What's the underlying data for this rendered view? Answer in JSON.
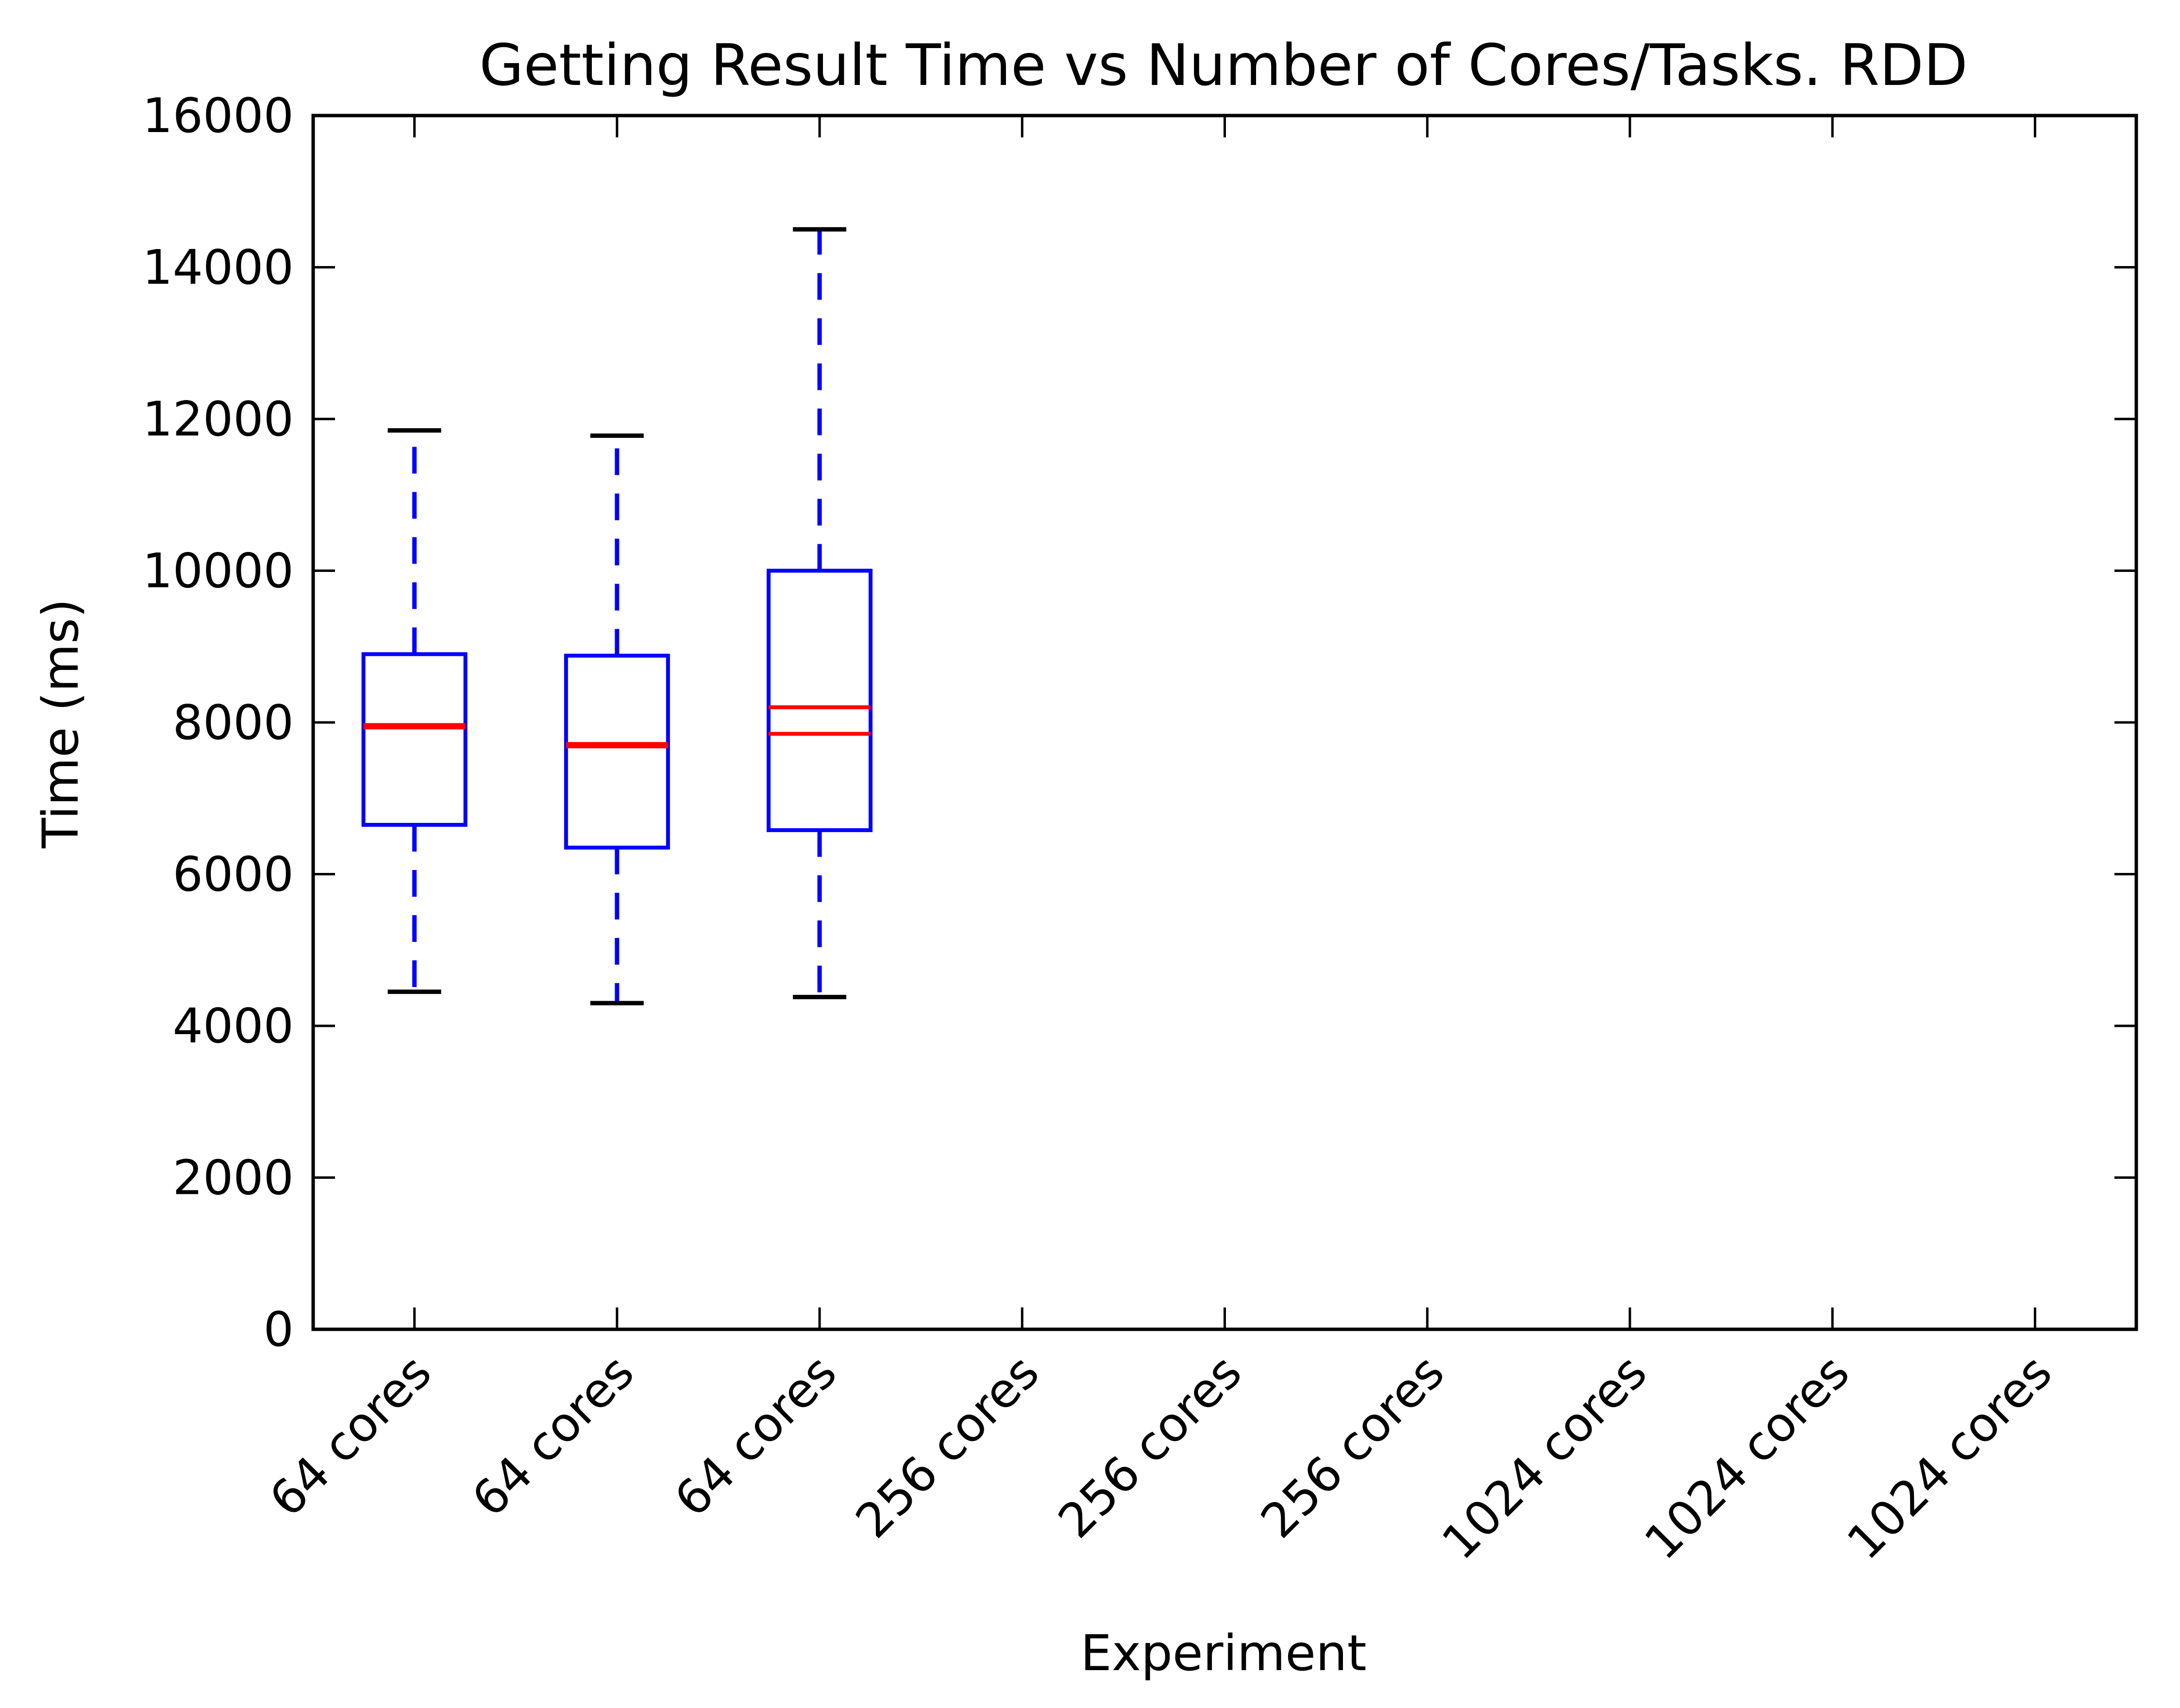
{
  "chart_data": {
    "type": "box",
    "title": "Getting Result Time vs Number of Cores/Tasks. RDD",
    "xlabel": "Experiment",
    "ylabel": "Time (ms)",
    "ylim": [
      0,
      16000
    ],
    "yticks": [
      0,
      2000,
      4000,
      6000,
      8000,
      10000,
      12000,
      14000,
      16000
    ],
    "categories": [
      "64 cores",
      "64 cores",
      "64 cores",
      "256 cores",
      "256 cores",
      "256 cores",
      "1024 cores",
      "1024 cores",
      "1024 cores"
    ],
    "boxes": [
      {
        "whisker_low": 4450,
        "q1": 6650,
        "median": 7950,
        "q3": 8900,
        "whisker_high": 11850,
        "medians": [
          7950
        ]
      },
      {
        "whisker_low": 4300,
        "q1": 6350,
        "median": 7700,
        "q3": 8880,
        "whisker_high": 11780,
        "medians": [
          7700
        ]
      },
      {
        "whisker_low": 4380,
        "q1": 6580,
        "median": 8200,
        "q3": 10000,
        "whisker_high": 14500,
        "medians": [
          8200,
          7850
        ]
      },
      null,
      null,
      null,
      null,
      null,
      null
    ],
    "box_color": "#0000ff",
    "median_color": "#ff0000",
    "whisker_cap_color": "#000000",
    "grid": false
  }
}
